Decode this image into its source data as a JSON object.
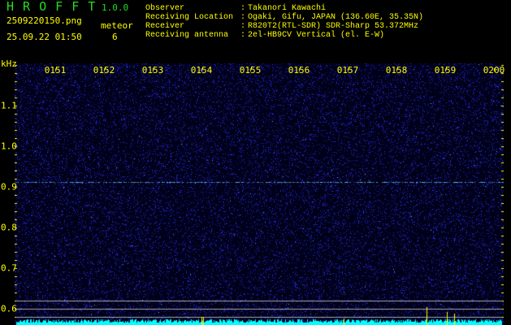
{
  "header": {
    "app_name": "H R O F F T",
    "version": "1.0.0",
    "filename": "2509220150.png",
    "datetime": "25.09.22 01:50",
    "meteor_label": "meteor",
    "meteor_count": "6",
    "info": [
      {
        "label": "Observer",
        "value": "Takanori Kawachi"
      },
      {
        "label": "Receiving Location",
        "value": "Ogaki, Gifu, JAPAN (136.60E, 35.35N)"
      },
      {
        "label": "Receiver",
        "value": "R820T2(RTL-SDR) SDR-Sharp 53.372MHz"
      },
      {
        "label": "Receiving antenna",
        "value": "2el-HB9CV Vertical (el. E-W)"
      }
    ]
  },
  "spectrogram": {
    "y_unit": "kHz",
    "y_ticks": [
      "1.1",
      "1.0",
      "0.9",
      "0.8",
      "0.7",
      "0.6"
    ],
    "x_ticks": [
      "0151",
      "0152",
      "0153",
      "0154",
      "0155",
      "0156",
      "0157",
      "0158",
      "0159",
      "0200"
    ],
    "carrier_khz": 0.91,
    "colors": {
      "background": "#000030",
      "noise": "#2a2aff",
      "carrier": "#66ccff",
      "level": "#00ffff",
      "marker": "#ffff00",
      "lines": "#aaaaaa"
    }
  }
}
